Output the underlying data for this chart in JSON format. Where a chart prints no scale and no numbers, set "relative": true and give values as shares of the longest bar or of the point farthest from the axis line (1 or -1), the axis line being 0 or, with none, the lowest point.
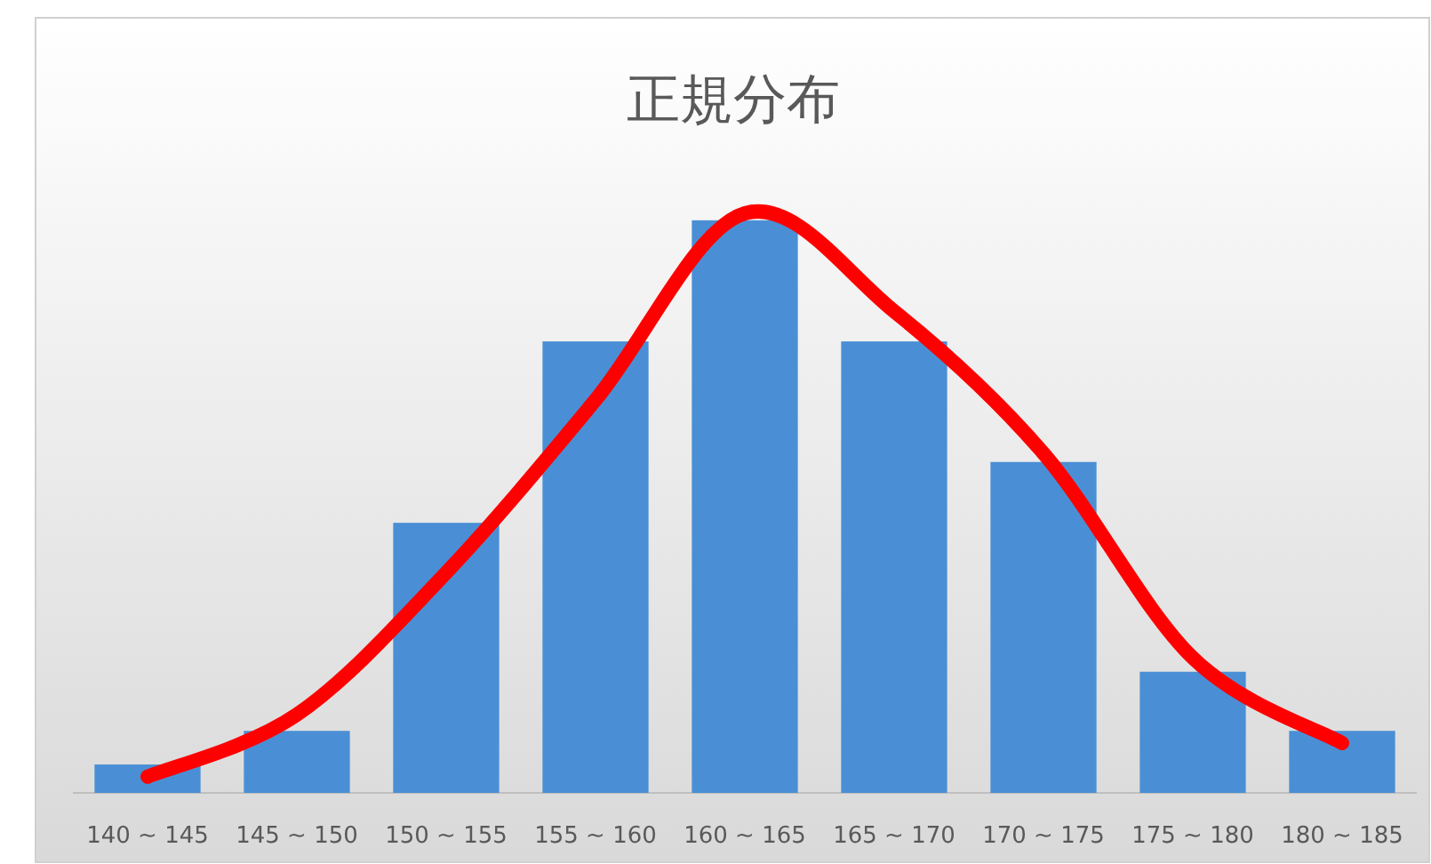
{
  "chart_data": {
    "type": "bar",
    "title": "正規分布",
    "relative": true,
    "categories": [
      "140 ~ 145",
      "145 ~ 150",
      "150 ~ 155",
      "155 ~ 160",
      "160 ~ 165",
      "165 ~ 170",
      "170 ~ 175",
      "175 ~ 180",
      "180 ~ 185"
    ],
    "series": [
      {
        "color": "#4a8fd5",
        "values": [
          0.049,
          0.107,
          0.466,
          0.779,
          0.988,
          0.779,
          0.571,
          0.209,
          0.107
        ]
      },
      {
        "type": "line",
        "color": "#ff0000",
        "line_style": "solid",
        "values": [
          0.028,
          0.135,
          0.38,
          0.678,
          1,
          0.831,
          0.586,
          0.233,
          0.086
        ]
      }
    ]
  }
}
